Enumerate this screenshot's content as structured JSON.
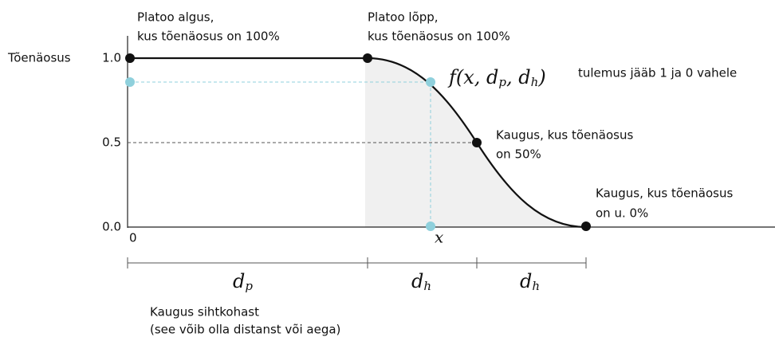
{
  "y_axis": {
    "label": "Tõenäosus",
    "ticks": [
      "1.0",
      "0.5",
      "0.0"
    ]
  },
  "x_axis": {
    "origin": "0",
    "x": "x",
    "caption": [
      "Kaugus sihtkohast",
      "(see võib olla distanst või aega)"
    ]
  },
  "annotations": {
    "plateau_start": [
      "Platoo algus,",
      "kus tõenäosus on 100%"
    ],
    "plateau_end": [
      "Platoo lõpp,",
      "kus tõenäosus on 100%"
    ],
    "half": [
      "Kaugus, kus tõenäosus",
      "on 50%"
    ],
    "zero": [
      "Kaugus, kus tõenäosus",
      "on u. 0%"
    ],
    "result": "tulemus jääb 1 ja 0 vahele"
  },
  "formula": {
    "start": "f(x, d",
    "sub1": "p",
    "mid": ", d",
    "sub2": "h",
    "end": ")"
  },
  "segments": [
    {
      "base": "d",
      "sub": "p"
    },
    {
      "base": "d",
      "sub": "h"
    },
    {
      "base": "d",
      "sub": "h"
    }
  ]
}
